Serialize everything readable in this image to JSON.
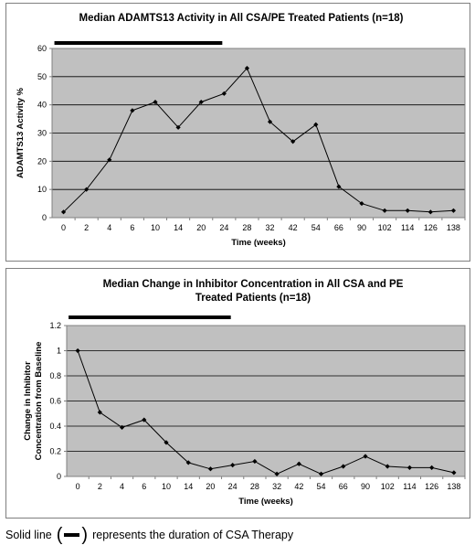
{
  "chart_data": [
    {
      "type": "line",
      "title": "Median ADAMTS13 Activity in All CSA/PE Treated Patients (n=18)",
      "xlabel": "Time (weeks)",
      "ylabel": "ADAMTS13 Activity %",
      "categories": [
        "0",
        "2",
        "4",
        "6",
        "10",
        "14",
        "20",
        "24",
        "28",
        "32",
        "42",
        "54",
        "66",
        "90",
        "102",
        "114",
        "126",
        "138"
      ],
      "series": [
        {
          "values": [
            2,
            10,
            20.5,
            38,
            41,
            32,
            41,
            44,
            53,
            34,
            27,
            33,
            11,
            5,
            2.5,
            2.5,
            2,
            2.5
          ]
        }
      ],
      "ylim": [
        0,
        60
      ],
      "yticks": [
        "0",
        "10",
        "20",
        "30",
        "40",
        "50",
        "60"
      ],
      "grid": true,
      "csa_therapy_bar": {
        "from": "0",
        "to": "24"
      }
    },
    {
      "type": "line",
      "title": "Median Change in Inhibitor Concentration in All CSA and PE Treated Patients (n=18)",
      "title_lines": [
        "Median Change in Inhibitor Concentration in All CSA and PE",
        "Treated Patients (n=18)"
      ],
      "xlabel": "Time (weeks)",
      "ylabel": "Change in Inhibitor Concentration from Baseline",
      "ylabel_lines": [
        "Change in Inhibitor",
        "Concentration from Baseline"
      ],
      "categories": [
        "0",
        "2",
        "4",
        "6",
        "10",
        "14",
        "20",
        "24",
        "28",
        "32",
        "42",
        "54",
        "66",
        "90",
        "102",
        "114",
        "126",
        "138"
      ],
      "series": [
        {
          "values": [
            1,
            0.51,
            0.39,
            0.45,
            0.27,
            0.11,
            0.06,
            0.09,
            0.12,
            0.02,
            0.1,
            0.02,
            0.08,
            0.16,
            0.08,
            0.07,
            0.07,
            0.03
          ]
        }
      ],
      "ylim": [
        0,
        1.2
      ],
      "yticks": [
        "0",
        "0.2",
        "0.4",
        "0.6",
        "0.8",
        "1",
        "1.2"
      ],
      "grid": true,
      "csa_therapy_bar": {
        "from": "0",
        "to": "24"
      }
    }
  ],
  "footnote": {
    "before": "Solid line",
    "open_paren": "(",
    "close_paren": ")",
    "after": "represents the duration of CSA Therapy"
  }
}
